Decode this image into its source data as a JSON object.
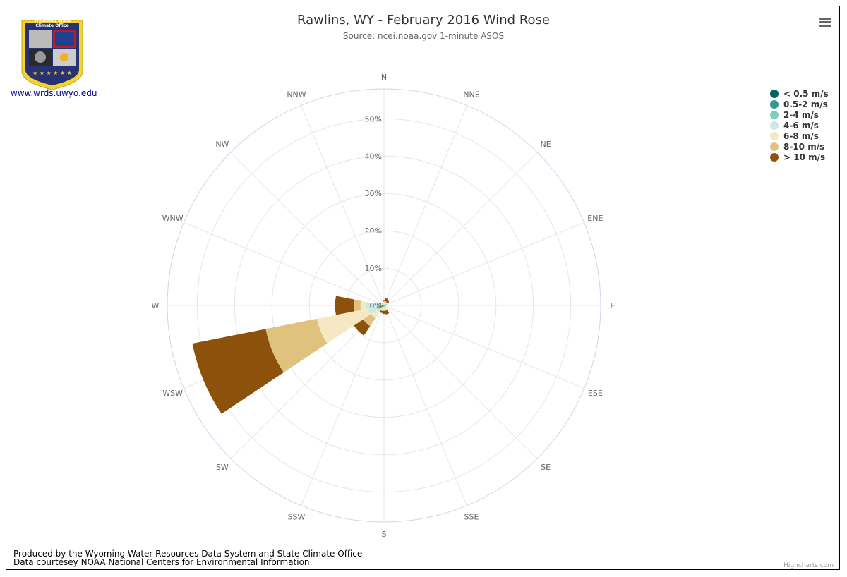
{
  "logo": {
    "text_line1": "Wyoming State",
    "text_line2": "Climate Office",
    "url": "www.wrds.uwyo.edu"
  },
  "footer": {
    "line1": "Produced by the Wyoming Water Resources Data System and State Climate Office",
    "line2": "Data courtesey NOAA National Centers for Environmental Information"
  },
  "credits": "Highcharts.com",
  "menu_icon": "hamburger-menu-icon",
  "chart_data": {
    "type": "bar",
    "polar": true,
    "stacked": true,
    "title": "Rawlins, WY - February 2016 Wind Rose",
    "subtitle": "Source: ncei.noaa.gov 1-minute ASOS",
    "categories": [
      "N",
      "NNE",
      "NE",
      "ENE",
      "E",
      "ESE",
      "SE",
      "SSE",
      "S",
      "SSW",
      "SW",
      "WSW",
      "W",
      "WNW",
      "NW",
      "NNW"
    ],
    "radial_ticks": [
      "0%",
      "10%",
      "20%",
      "30%",
      "40%",
      "50%"
    ],
    "radial_max": 58,
    "legend_position": "top-right",
    "grid": true,
    "series": [
      {
        "name": "< 0.5 m/s",
        "color": "#01665e",
        "values": [
          0,
          0,
          0,
          0,
          0,
          0,
          0,
          0,
          0,
          0,
          0,
          0.5,
          0.2,
          0,
          0,
          0
        ]
      },
      {
        "name": "0.5-2 m/s",
        "color": "#35978f",
        "values": [
          0.1,
          0.1,
          0.1,
          0.1,
          0.1,
          0.1,
          0.1,
          0.1,
          0.1,
          0.1,
          0.2,
          0.3,
          0.4,
          0.1,
          0.1,
          0.1
        ]
      },
      {
        "name": "2-4 m/s",
        "color": "#80cdc1",
        "values": [
          0.2,
          0.1,
          0.1,
          0.1,
          0.1,
          0.1,
          0.2,
          0.3,
          0.3,
          0.3,
          0.5,
          1.0,
          1.0,
          0.3,
          0.2,
          0.2
        ]
      },
      {
        "name": "4-6 m/s",
        "color": "#c7eae5",
        "values": [
          0.3,
          0.3,
          0.3,
          0.2,
          0.1,
          0.1,
          0.2,
          0.5,
          0.5,
          0.5,
          1.5,
          2.5,
          3.2,
          0.2,
          0.2,
          0.2
        ]
      },
      {
        "name": "6-8 m/s",
        "color": "#f6e8c3",
        "values": [
          0.3,
          0.3,
          0.3,
          0.1,
          0.1,
          0.1,
          0.1,
          0.3,
          0.3,
          0.4,
          2.0,
          14.0,
          1.5,
          0.2,
          0.1,
          0.1
        ]
      },
      {
        "name": "8-10 m/s",
        "color": "#dfc27d",
        "values": [
          0.3,
          0.4,
          0.3,
          0.1,
          0,
          0,
          0,
          0.3,
          0.3,
          0.3,
          2.5,
          14.0,
          1.8,
          0.1,
          0,
          0.1
        ]
      },
      {
        "name": "> 10 m/s",
        "color": "#8c510a",
        "values": [
          0.2,
          0.8,
          0.6,
          0.1,
          0,
          0,
          0,
          1.0,
          0.8,
          0.5,
          3.0,
          20.0,
          5.0,
          0.2,
          0,
          0.1
        ]
      }
    ]
  }
}
